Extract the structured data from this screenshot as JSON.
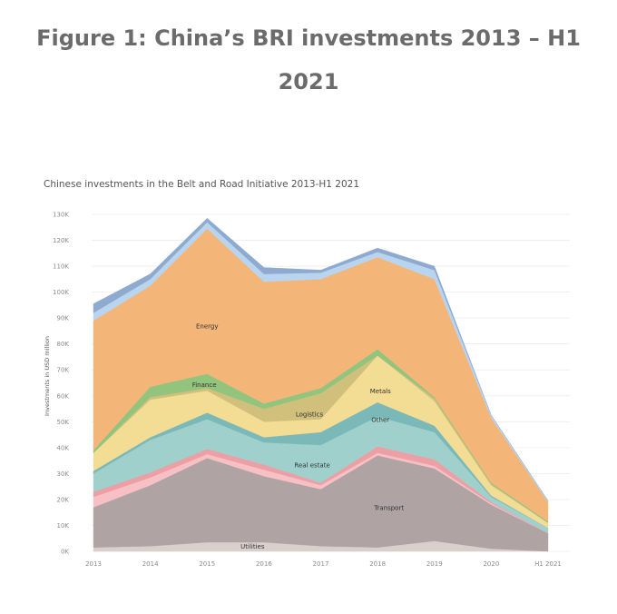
{
  "figure_title_line1": "Figure 1: China’s BRI investments 2013 – H1",
  "figure_title_line2": "2021",
  "chart_data": {
    "type": "area",
    "stacked": true,
    "title": "Chinese investments in the Belt and Road Initiative 2013-H1 2021",
    "ylabel": "Investments in USD million",
    "xlabel": "",
    "categories": [
      "2013",
      "2014",
      "2015",
      "2016",
      "2017",
      "2018",
      "2019",
      "2020",
      "H1 2021"
    ],
    "ylim": [
      0,
      130000
    ],
    "yticks": [
      0,
      10000,
      20000,
      30000,
      40000,
      50000,
      60000,
      70000,
      80000,
      90000,
      100000,
      110000,
      120000,
      130000
    ],
    "ytick_labels": [
      "0K",
      "10K",
      "20K",
      "30K",
      "40K",
      "50K",
      "60K",
      "70K",
      "80K",
      "90K",
      "100K",
      "110K",
      "120K",
      "130K"
    ],
    "grid": true,
    "series": [
      {
        "name": "Utilities",
        "color": "#d9d0cd",
        "label_at": [
          2.8,
          1000
        ],
        "values": [
          1500,
          2000,
          3500,
          3500,
          2000,
          1500,
          4000,
          1000,
          0
        ]
      },
      {
        "name": "Transport",
        "color": "#b0a3a3",
        "label_at": [
          5.2,
          16000
        ],
        "values": [
          15500,
          23500,
          32500,
          25500,
          22000,
          35500,
          28000,
          17000,
          7000
        ]
      },
      {
        "name": "",
        "color": "#f7c0c4",
        "values": [
          4000,
          3000,
          1500,
          2500,
          1500,
          1000,
          1000,
          500,
          0
        ]
      },
      {
        "name": "",
        "color": "#ec9fa4",
        "values": [
          2000,
          2000,
          2000,
          2000,
          1000,
          2500,
          2500,
          500,
          0
        ]
      },
      {
        "name": "Real estate",
        "color": "#9fd0cc",
        "label_at": [
          3.85,
          32500
        ],
        "values": [
          7000,
          12500,
          11500,
          8500,
          14500,
          11500,
          10500,
          2000,
          2000
        ]
      },
      {
        "name": "Other",
        "color": "#7bb8b8",
        "label_at": [
          5.05,
          50000
        ],
        "values": [
          1000,
          1000,
          2500,
          2000,
          5000,
          5500,
          2500,
          500,
          0
        ]
      },
      {
        "name": "Metals",
        "color": "#f3dc93",
        "label_at": [
          5.05,
          61000
        ],
        "values": [
          7000,
          14500,
          8500,
          6000,
          5000,
          18000,
          9500,
          4000,
          2000
        ]
      },
      {
        "name": "Logistics",
        "color": "#d1c07b",
        "label_at": [
          3.8,
          52000
        ],
        "values": [
          0,
          1000,
          1000,
          5000,
          10000,
          0,
          1000,
          500,
          0
        ]
      },
      {
        "name": "Finance",
        "color": "#93c47d",
        "label_at": [
          1.95,
          63500
        ],
        "values": [
          1000,
          4000,
          5500,
          2000,
          2000,
          2500,
          500,
          500,
          500
        ]
      },
      {
        "name": "Energy",
        "color": "#f4b579",
        "label_at": [
          2.0,
          86000
        ],
        "values": [
          50000,
          39000,
          56000,
          47000,
          42000,
          35500,
          45500,
          25000,
          7500
        ]
      },
      {
        "name": "",
        "color": "#b8d4ee",
        "values": [
          3000,
          2500,
          2500,
          3000,
          2500,
          2000,
          3500,
          1000,
          500
        ]
      },
      {
        "name": "",
        "color": "#8eaacf",
        "values": [
          3500,
          2000,
          1500,
          2500,
          1000,
          1500,
          1500,
          0,
          0
        ]
      }
    ]
  }
}
